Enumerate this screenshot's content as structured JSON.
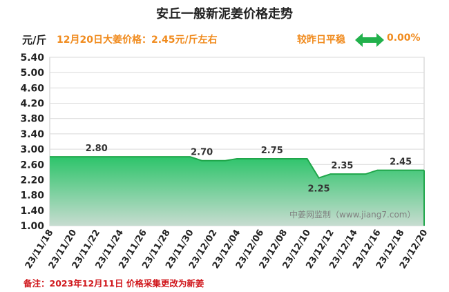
{
  "header": {
    "title": "安丘一般新泥姜价格走势",
    "unit": "元/斤",
    "price_note": "12月20日大姜价格：2.45元/斤左右",
    "compare_label": "较昨日平稳",
    "compare_value": "0.00%",
    "arrow_icon": "double-arrow-icon",
    "accent_color": "#f08a1c",
    "arrow_color": "#22b14c"
  },
  "footnote": "备注：2023年12月11日 价格采集更改为新姜",
  "watermark": "中姜网监制（www.jiang7.com）",
  "chart_data": {
    "type": "area",
    "ylim": [
      1.0,
      5.4
    ],
    "yticks": [
      "1.00",
      "1.40",
      "1.80",
      "2.20",
      "2.60",
      "3.00",
      "3.40",
      "3.80",
      "4.20",
      "4.60",
      "5.00",
      "5.40"
    ],
    "xlabels": [
      "23/11/18",
      "23/11/20",
      "23/11/22",
      "23/11/24",
      "23/11/26",
      "23/11/28",
      "23/11/30",
      "23/12/02",
      "23/12/04",
      "23/12/06",
      "23/12/08",
      "23/12/10",
      "23/12/12",
      "23/12/14",
      "23/12/16",
      "23/12/18",
      "23/12/20"
    ],
    "x": [
      "11/18",
      "11/19",
      "11/20",
      "11/21",
      "11/22",
      "11/23",
      "11/24",
      "11/25",
      "11/26",
      "11/27",
      "11/28",
      "11/29",
      "11/30",
      "12/01",
      "12/02",
      "12/03",
      "12/04",
      "12/05",
      "12/06",
      "12/07",
      "12/08",
      "12/09",
      "12/10",
      "12/11",
      "12/12",
      "12/13",
      "12/14",
      "12/15",
      "12/16",
      "12/17",
      "12/18",
      "12/19",
      "12/20"
    ],
    "values": [
      2.8,
      2.8,
      2.8,
      2.8,
      2.8,
      2.8,
      2.8,
      2.8,
      2.8,
      2.8,
      2.8,
      2.8,
      2.8,
      2.7,
      2.7,
      2.7,
      2.75,
      2.75,
      2.75,
      2.75,
      2.75,
      2.75,
      2.75,
      2.25,
      2.35,
      2.35,
      2.35,
      2.35,
      2.45,
      2.45,
      2.45,
      2.45,
      2.45
    ],
    "labels": [
      {
        "index": 4,
        "text": "2.80",
        "pos": "above"
      },
      {
        "index": 13,
        "text": "2.70",
        "pos": "above"
      },
      {
        "index": 19,
        "text": "2.75",
        "pos": "above"
      },
      {
        "index": 23,
        "text": "2.25",
        "pos": "below"
      },
      {
        "index": 25,
        "text": "2.35",
        "pos": "above"
      },
      {
        "index": 30,
        "text": "2.45",
        "pos": "above"
      }
    ],
    "grid": true
  }
}
